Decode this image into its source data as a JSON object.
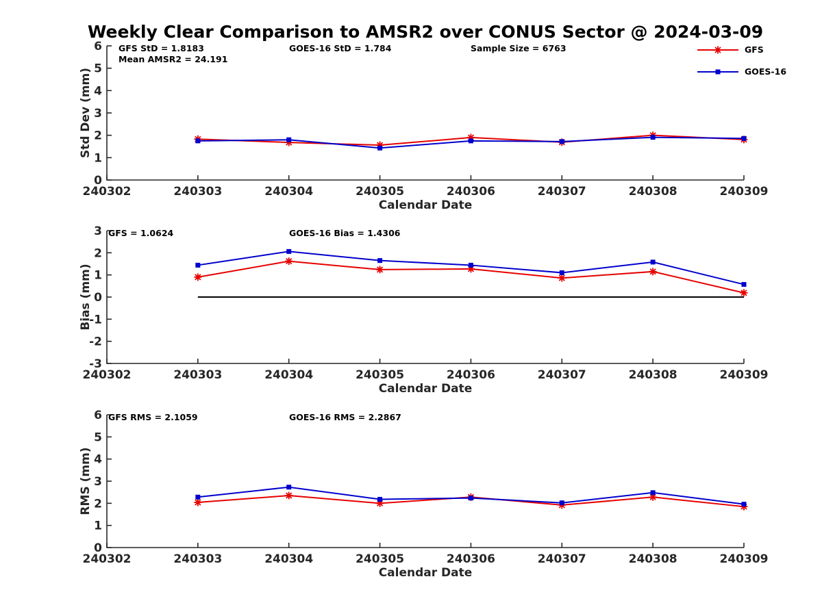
{
  "title": "Weekly Clear Comparison to AMSR2 over CONUS Sector @ 2024-03-09",
  "colors": {
    "GFS": "#e60000",
    "GOES-16": "#0000cc"
  },
  "legend": {
    "placement": "top-right",
    "items": [
      "GFS",
      "GOES-16"
    ]
  },
  "chart_data": [
    {
      "type": "line",
      "xlabel": "Calendar Date",
      "ylabel": "Std Dev (mm)",
      "ylim": [
        0,
        6
      ],
      "yticks": [
        "0",
        "1",
        "2",
        "3",
        "4",
        "5",
        "6"
      ],
      "x": [
        "240302",
        "240303",
        "240304",
        "240305",
        "240306",
        "240307",
        "240308",
        "240309"
      ],
      "series": [
        {
          "name": "GFS",
          "marker": "asterisk",
          "values": [
            null,
            1.83,
            1.68,
            1.56,
            1.9,
            1.69,
            2.0,
            1.81
          ]
        },
        {
          "name": "GOES-16",
          "marker": "square",
          "values": [
            null,
            1.75,
            1.8,
            1.43,
            1.75,
            1.72,
            1.91,
            1.86
          ]
        }
      ],
      "annotations": [
        "GFS StD = 1.8183",
        "GOES-16 StD = 1.784",
        "Sample Size = 6763",
        "Mean AMSR2 = 24.191"
      ],
      "grid": false
    },
    {
      "type": "line",
      "xlabel": "Calendar Date",
      "ylabel": "Bias (mm)",
      "ylim": [
        -3,
        3
      ],
      "yticks": [
        "-3",
        "-2",
        "-1",
        "0",
        "1",
        "2",
        "3"
      ],
      "x": [
        "240302",
        "240303",
        "240304",
        "240305",
        "240306",
        "240307",
        "240308",
        "240309"
      ],
      "series": [
        {
          "name": "GFS",
          "marker": "asterisk",
          "values": [
            null,
            0.9,
            1.62,
            1.24,
            1.27,
            0.86,
            1.15,
            0.19
          ]
        },
        {
          "name": "GOES-16",
          "marker": "square",
          "values": [
            null,
            1.44,
            2.06,
            1.65,
            1.44,
            1.1,
            1.58,
            0.57
          ]
        }
      ],
      "reference_line": {
        "y": 0,
        "from": "240303",
        "to": "240309"
      },
      "annotations": [
        "GFS = 1.0624",
        "GOES-16 Bias  = 1.4306"
      ],
      "grid": false
    },
    {
      "type": "line",
      "xlabel": "Calendar Date",
      "ylabel": "RMS (mm)",
      "ylim": [
        0,
        6
      ],
      "yticks": [
        "0",
        "1",
        "2",
        "3",
        "4",
        "5",
        "6"
      ],
      "x": [
        "240302",
        "240303",
        "240304",
        "240305",
        "240306",
        "240307",
        "240308",
        "240309"
      ],
      "series": [
        {
          "name": "GFS",
          "marker": "asterisk",
          "values": [
            null,
            2.04,
            2.35,
            2.0,
            2.28,
            1.92,
            2.28,
            1.85
          ]
        },
        {
          "name": "GOES-16",
          "marker": "square",
          "values": [
            null,
            2.28,
            2.73,
            2.18,
            2.24,
            2.02,
            2.48,
            1.96
          ]
        }
      ],
      "annotations": [
        "GFS RMS = 2.1059",
        "GOES-16 RMS = 2.2867"
      ],
      "grid": false
    }
  ]
}
